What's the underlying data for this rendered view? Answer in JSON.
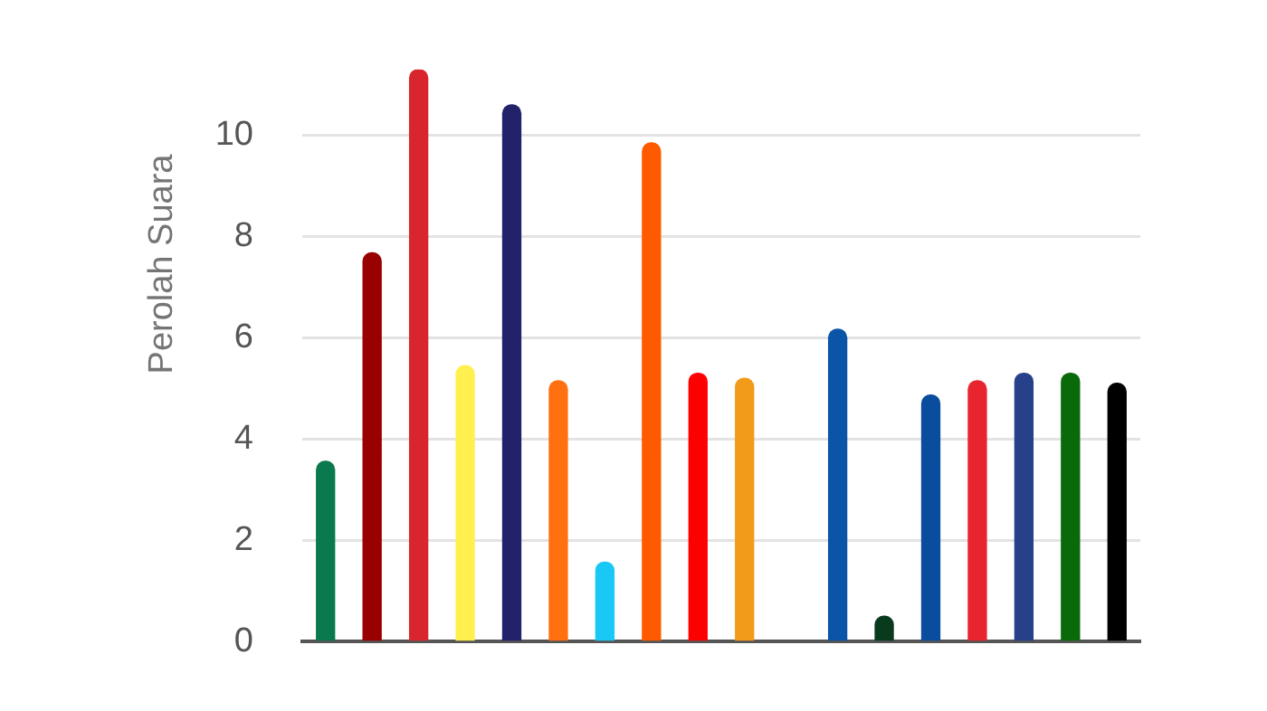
{
  "chart_data": {
    "type": "bar",
    "ylabel": "Perolah Suara",
    "categories": [
      null,
      null,
      null,
      null,
      null,
      null,
      null,
      null,
      null,
      null,
      null,
      null,
      null,
      null,
      null,
      null,
      null,
      null
    ],
    "values": [
      3.56,
      7.68,
      11.3,
      5.45,
      10.6,
      5.15,
      1.57,
      9.85,
      5.3,
      5.2,
      null,
      6.17,
      0.5,
      4.87,
      5.15,
      5.3,
      5.3,
      5.1
    ],
    "colors": [
      "#0a7a4e",
      "#990000",
      "#d9262e",
      "#fff04f",
      "#22226b",
      "#ff7010",
      "#1ac8f5",
      "#ff5a00",
      "#ff0000",
      "#f29a1a",
      "#888888",
      "#0a55a8",
      "#0a3a1e",
      "#0a4d9e",
      "#e8252e",
      "#26418a",
      "#0a6a0a",
      "#000000"
    ],
    "ylim": [
      0,
      11.3
    ],
    "yticks": [
      0,
      2,
      4,
      6,
      8,
      10
    ],
    "grid": "y",
    "tick_labels": "y",
    "legend": false
  }
}
